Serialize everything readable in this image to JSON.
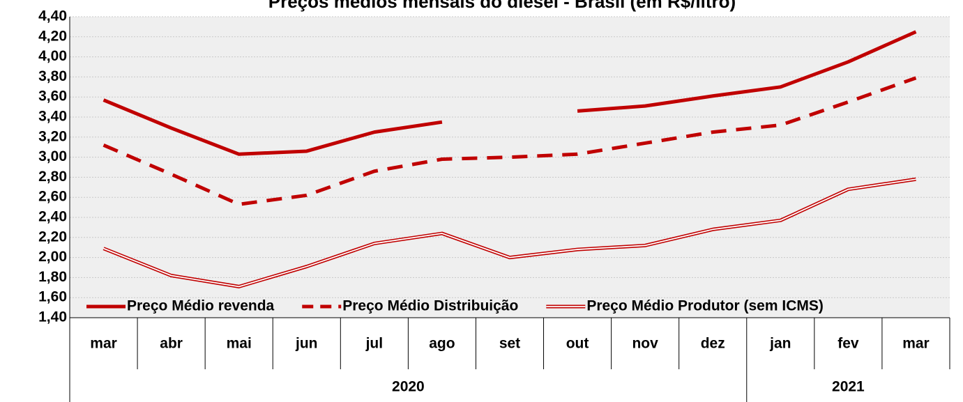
{
  "chart_data": {
    "type": "line",
    "title": "Preços médios mensais do diesel - Brasil (em R$/litro)",
    "categories": [
      "mar",
      "abr",
      "mai",
      "jun",
      "jul",
      "ago",
      "set",
      "out",
      "nov",
      "dez",
      "jan",
      "fev",
      "mar"
    ],
    "groups": [
      "2020",
      "2020",
      "2020",
      "2020",
      "2020",
      "2020",
      "2020",
      "2020",
      "2020",
      "2020",
      "2021",
      "2021",
      "2021"
    ],
    "series": [
      {
        "name": "Preço Médio revenda",
        "color": "#c00000",
        "style": "solid",
        "values": [
          3.57,
          3.29,
          3.03,
          3.06,
          3.25,
          3.35,
          null,
          3.46,
          3.51,
          3.61,
          3.7,
          3.95,
          4.25
        ]
      },
      {
        "name": "Preço Médio Distribuição",
        "color": "#c00000",
        "style": "dashed",
        "values": [
          3.12,
          2.83,
          2.53,
          2.62,
          2.86,
          2.98,
          3.0,
          3.03,
          3.14,
          3.25,
          3.32,
          3.55,
          3.79
        ]
      },
      {
        "name": "Preço Médio Produtor (sem ICMS)",
        "color": "#c00000",
        "style": "double",
        "values": [
          2.09,
          1.82,
          1.71,
          1.91,
          2.14,
          2.24,
          2.0,
          2.08,
          2.12,
          2.28,
          2.37,
          2.68,
          2.78
        ]
      }
    ],
    "ylim": [
      1.4,
      4.4
    ],
    "yticks": [
      {
        "value": 1.4,
        "label": "1,40"
      },
      {
        "value": 1.6,
        "label": "1,60"
      },
      {
        "value": 1.8,
        "label": "1,80"
      },
      {
        "value": 2.0,
        "label": "2,00"
      },
      {
        "value": 2.2,
        "label": "2,20"
      },
      {
        "value": 2.4,
        "label": "2,40"
      },
      {
        "value": 2.6,
        "label": "2,60"
      },
      {
        "value": 2.8,
        "label": "2,80"
      },
      {
        "value": 3.0,
        "label": "3,00"
      },
      {
        "value": 3.2,
        "label": "3,20"
      },
      {
        "value": 3.4,
        "label": "3,40"
      },
      {
        "value": 3.6,
        "label": "3,60"
      },
      {
        "value": 3.8,
        "label": "3,80"
      },
      {
        "value": 4.0,
        "label": "4,00"
      },
      {
        "value": 4.2,
        "label": "4,20"
      },
      {
        "value": 4.4,
        "label": "4,40"
      }
    ],
    "grid": true,
    "legend": "bottom"
  }
}
